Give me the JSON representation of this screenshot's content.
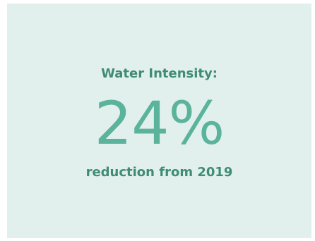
{
  "card": {
    "heading": "Water Intensity:",
    "stat": "24%",
    "subheading": "reduction from 2019"
  },
  "colors": {
    "background": "#e2f0ed",
    "heading_text": "#3f8c73",
    "stat_text": "#5ab39a"
  }
}
